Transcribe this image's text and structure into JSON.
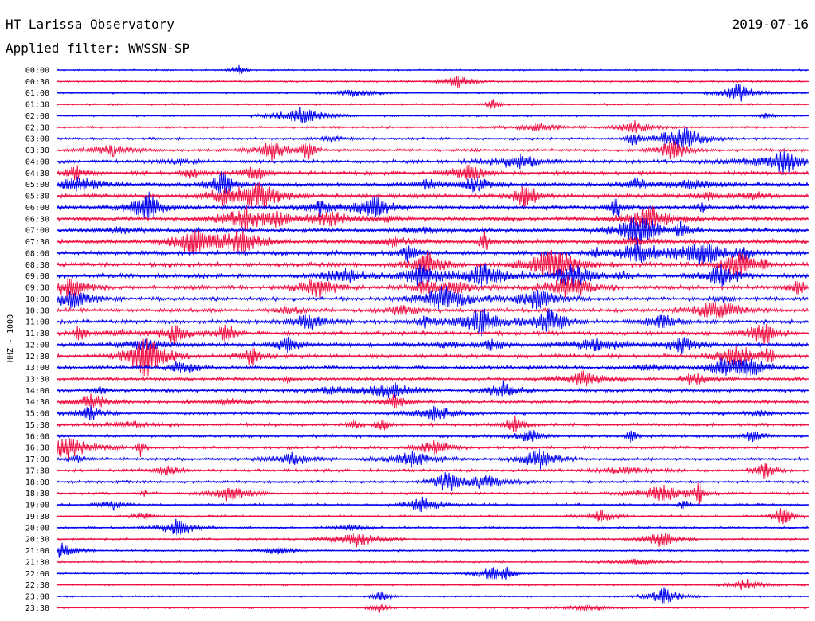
{
  "header": {
    "station": "HT Larissa Observatory",
    "filter": "Applied filter: WWSSN-SP",
    "date": "2019-07-16"
  },
  "chart_data": {
    "type": "helicorder",
    "title": "HT Larissa Observatory",
    "subtitle": "Applied filter: WWSSN-SP",
    "date": "2019-07-16",
    "ylabel": "HHZ - 1000",
    "row_labels": [
      "00:00",
      "00:30",
      "01:00",
      "01:30",
      "02:00",
      "02:30",
      "03:00",
      "03:30",
      "04:00",
      "04:30",
      "05:00",
      "05:30",
      "06:00",
      "06:30",
      "07:00",
      "07:30",
      "08:00",
      "08:30",
      "09:00",
      "09:30",
      "10:00",
      "10:30",
      "11:00",
      "11:30",
      "12:00",
      "12:30",
      "13:00",
      "13:30",
      "14:00",
      "14:30",
      "15:00",
      "15:30",
      "16:00",
      "16:30",
      "17:00",
      "17:30",
      "18:00",
      "18:30",
      "19:00",
      "19:30",
      "20:00",
      "20:30",
      "21:00",
      "21:30",
      "22:00",
      "22:30",
      "23:00",
      "23:30"
    ],
    "trace_colors": [
      "#0000ee",
      "#ee1144"
    ],
    "activity_level": [
      0.08,
      0.1,
      0.1,
      0.12,
      0.12,
      0.16,
      0.22,
      0.3,
      0.38,
      0.42,
      0.45,
      0.48,
      0.5,
      0.5,
      0.52,
      0.52,
      0.55,
      0.55,
      0.5,
      0.48,
      0.45,
      0.45,
      0.48,
      0.45,
      0.48,
      0.45,
      0.42,
      0.38,
      0.38,
      0.35,
      0.32,
      0.32,
      0.3,
      0.3,
      0.3,
      0.28,
      0.25,
      0.24,
      0.22,
      0.2,
      0.18,
      0.16,
      0.14,
      0.12,
      0.1,
      0.1,
      0.08,
      0.08
    ]
  }
}
